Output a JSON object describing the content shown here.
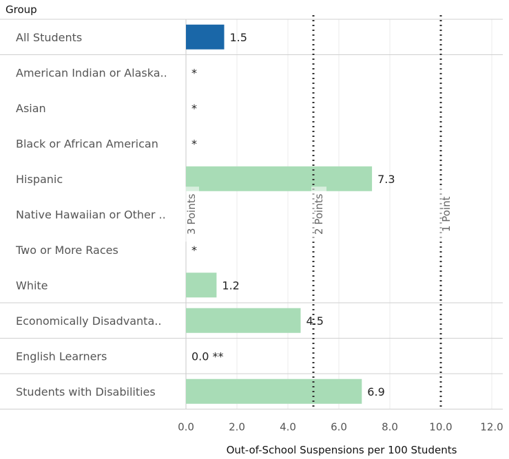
{
  "chart_data": {
    "type": "bar",
    "orientation": "horizontal",
    "row_header": "Group",
    "xlabel": "Out-of-School Suspensions per 100 Students",
    "xlim": [
      0,
      12.5
    ],
    "xticks": [
      "0.0",
      "2.0",
      "4.0",
      "6.0",
      "8.0",
      "10.0",
      "12.0"
    ],
    "xtick_values": [
      0,
      2,
      4,
      6,
      8,
      10,
      12
    ],
    "grid": true,
    "rows": [
      {
        "label": "All Students",
        "value": 1.5,
        "label_text": "1.5",
        "color": "#1a67a8"
      },
      {
        "label": "American Indian or Alaska..",
        "value": null,
        "label_text": "*",
        "color": "#a8dcb6"
      },
      {
        "label": "Asian",
        "value": null,
        "label_text": "*",
        "color": "#a8dcb6"
      },
      {
        "label": "Black or African American",
        "value": null,
        "label_text": "*",
        "color": "#a8dcb6"
      },
      {
        "label": "Hispanic",
        "value": 7.3,
        "label_text": "7.3",
        "color": "#a8dcb6"
      },
      {
        "label": "Native Hawaiian or Other ..",
        "value": null,
        "label_text": "",
        "color": "#a8dcb6"
      },
      {
        "label": "Two or More Races",
        "value": null,
        "label_text": "*",
        "color": "#a8dcb6"
      },
      {
        "label": "White",
        "value": 1.2,
        "label_text": "1.2",
        "color": "#a8dcb6"
      },
      {
        "label": "Economically Disadvanta..",
        "value": 4.5,
        "label_text": "4.5",
        "color": "#a8dcb6"
      },
      {
        "label": "English Learners",
        "value": 0.0,
        "label_text": "0.0 **",
        "color": "#a8dcb6"
      },
      {
        "label": "Students with Disabilities",
        "value": 6.9,
        "label_text": "6.9",
        "color": "#a8dcb6"
      }
    ],
    "separators_after_rows": [
      0,
      7,
      8,
      9
    ],
    "reference_lines": [
      {
        "value": 0.0,
        "label": "3 Points"
      },
      {
        "value": 5.0,
        "label": "2 Points"
      },
      {
        "value": 10.0,
        "label": "1 Point"
      }
    ]
  }
}
